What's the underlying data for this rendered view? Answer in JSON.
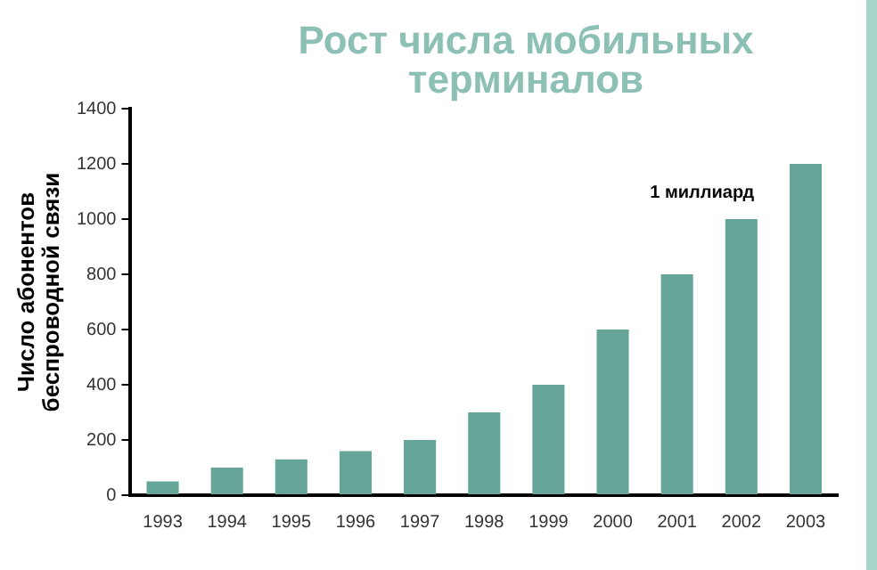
{
  "chart_data": {
    "type": "bar",
    "title": "Рост числа мобильных терминалов",
    "ylabel": "Число абонентов беспроводной связи",
    "categories": [
      "1993",
      "1994",
      "1995",
      "1996",
      "1997",
      "1998",
      "1999",
      "2000",
      "2001",
      "2002",
      "2003"
    ],
    "values": [
      50,
      100,
      130,
      160,
      200,
      300,
      400,
      600,
      800,
      1000,
      1200
    ],
    "color": "#66a699",
    "ylim": [
      0,
      1400
    ],
    "yticks": [
      0,
      200,
      400,
      600,
      800,
      1000,
      1200,
      1400
    ],
    "grid": false,
    "legend": false,
    "annotations": [
      {
        "text": "1 миллиард",
        "x": "2002",
        "y": 1000
      }
    ]
  }
}
